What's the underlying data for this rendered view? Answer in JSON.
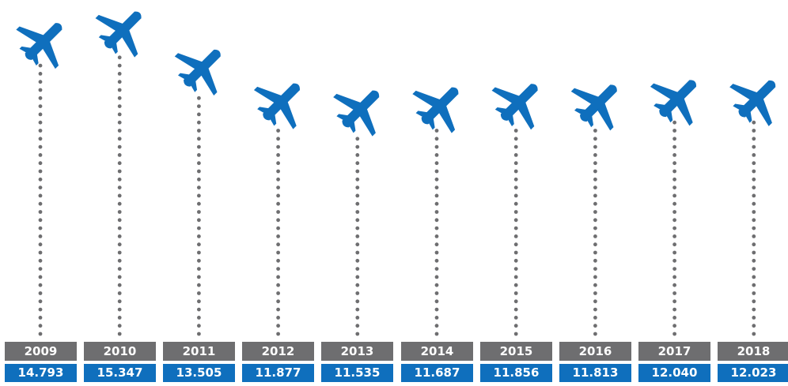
{
  "colors": {
    "plane": "#0f6fbd",
    "dots": "#6e6e70",
    "year_bg": "#6e6e70",
    "value_bg": "#0f6fbd",
    "label_text": "#ffffff"
  },
  "icon": "airplane-icon",
  "chart_data": {
    "type": "line",
    "x": [
      "2009",
      "2010",
      "2011",
      "2012",
      "2013",
      "2014",
      "2015",
      "2016",
      "2017",
      "2018"
    ],
    "values": [
      14.793,
      15.347,
      13.505,
      11.877,
      11.535,
      11.687,
      11.856,
      11.813,
      12.04,
      12.023
    ],
    "value_labels": [
      "14.793",
      "15.347",
      "13.505",
      "11.877",
      "11.535",
      "11.687",
      "11.856",
      "11.813",
      "12.040",
      "12.023"
    ],
    "title": "",
    "xlabel": "",
    "ylabel": "",
    "grid": false,
    "legend": "none"
  }
}
